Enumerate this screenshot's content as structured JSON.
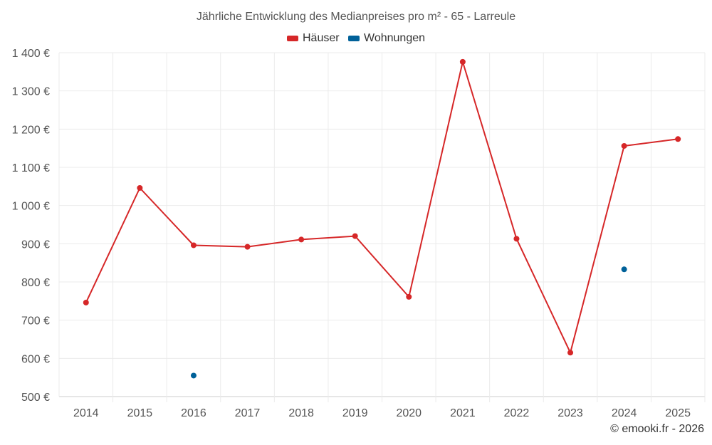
{
  "chart_data": {
    "type": "line",
    "title": "Jährliche Entwicklung des Medianpreises pro m² - 65 - Larreule",
    "xlabel": "",
    "ylabel": "",
    "categories": [
      "2014",
      "2015",
      "2016",
      "2017",
      "2018",
      "2019",
      "2020",
      "2021",
      "2022",
      "2023",
      "2024",
      "2025"
    ],
    "ylim": [
      500,
      1400
    ],
    "yticks": [
      500,
      600,
      700,
      800,
      900,
      1000,
      1100,
      1200,
      1300,
      1400
    ],
    "ytick_labels": [
      "500 €",
      "600 €",
      "700 €",
      "800 €",
      "900 €",
      "1 000 €",
      "1 100 €",
      "1 200 €",
      "1 300 €",
      "1 400 €"
    ],
    "grid": true,
    "legend_position": "top-center",
    "series": [
      {
        "name": "Häuser",
        "color": "#d62728",
        "values": [
          746,
          1046,
          896,
          892,
          911,
          920,
          761,
          1376,
          913,
          615,
          1156,
          1174
        ]
      },
      {
        "name": "Wohnungen",
        "color": "#006199",
        "values": [
          null,
          null,
          555,
          null,
          null,
          null,
          null,
          null,
          null,
          null,
          833,
          null
        ]
      }
    ]
  },
  "footer": {
    "credit": "© emooki.fr - 2026"
  }
}
